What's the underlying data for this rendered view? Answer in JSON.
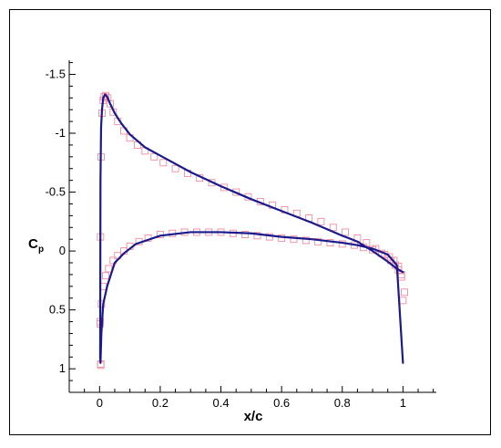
{
  "chart_data": {
    "type": "line",
    "title": "",
    "xlabel": "x/c",
    "ylabel_main": "C",
    "ylabel_sub": "p",
    "xlim": [
      -0.1,
      1.11
    ],
    "ylim": [
      1.2,
      -1.62
    ],
    "y_inverted": true,
    "grid": false,
    "legend": "none",
    "x_ticks": [
      "0",
      "0.2",
      "0.4",
      "0.6",
      "0.8",
      "1"
    ],
    "x_tick_values": [
      0,
      0.2,
      0.4,
      0.6,
      0.8,
      1.0
    ],
    "y_ticks": [
      "-1.5",
      "-1",
      "-0.5",
      "0",
      "0.5",
      "1"
    ],
    "y_tick_values": [
      -1.5,
      -1.0,
      -0.5,
      0,
      0.5,
      1.0
    ],
    "colors": {
      "line": "#1a1a8c",
      "markers": "#f08ca0"
    },
    "series": [
      {
        "kind": "line",
        "x": [
          1.0,
          0.98,
          0.95,
          0.9,
          0.85,
          0.8,
          0.7,
          0.6,
          0.5,
          0.4,
          0.3,
          0.2,
          0.15,
          0.1,
          0.07,
          0.05,
          0.035,
          0.025,
          0.018,
          0.012,
          0.008,
          0.005,
          0.003,
          0.002,
          0.003,
          0.006,
          0.012,
          0.025,
          0.05,
          0.08,
          0.12,
          0.2,
          0.3,
          0.4,
          0.5,
          0.6,
          0.7,
          0.8,
          0.85,
          0.9,
          0.95,
          0.98,
          1.0
        ],
        "y": [
          0.18,
          0.15,
          0.09,
          0.0,
          -0.08,
          -0.13,
          -0.24,
          -0.34,
          -0.44,
          -0.55,
          -0.67,
          -0.81,
          -0.88,
          -0.99,
          -1.09,
          -1.17,
          -1.25,
          -1.31,
          -1.33,
          -1.3,
          -1.2,
          -1.05,
          -0.6,
          0.9,
          0.95,
          0.7,
          0.45,
          0.3,
          0.1,
          0.02,
          -0.06,
          -0.13,
          -0.16,
          -0.16,
          -0.15,
          -0.12,
          -0.1,
          -0.07,
          -0.05,
          -0.02,
          0.03,
          0.12,
          0.95
        ]
      },
      {
        "kind": "markers",
        "x": [
          0.005,
          0.003,
          0.002,
          0.004,
          0.008,
          0.012,
          0.015,
          0.02,
          0.027,
          0.035,
          0.045,
          0.06,
          0.08,
          0.1,
          0.125,
          0.15,
          0.18,
          0.21,
          0.25,
          0.29,
          0.33,
          0.37,
          0.41,
          0.45,
          0.49,
          0.53,
          0.57,
          0.61,
          0.65,
          0.69,
          0.73,
          0.77,
          0.81,
          0.85,
          0.88,
          0.91,
          0.94,
          0.96,
          0.975,
          0.985,
          0.995,
          1.0,
          0.004,
          0.002,
          0.006,
          0.012,
          0.02,
          0.03,
          0.045,
          0.06,
          0.08,
          0.1,
          0.13,
          0.16,
          0.2,
          0.24,
          0.28,
          0.32,
          0.36,
          0.4,
          0.44,
          0.48,
          0.52,
          0.56,
          0.6,
          0.64,
          0.68,
          0.72,
          0.76,
          0.8,
          0.84,
          0.87,
          0.9,
          0.93,
          0.955,
          0.97,
          0.985,
          0.995,
          1.005
        ],
        "y": [
          -0.8,
          -0.12,
          0.6,
          0.96,
          -1.17,
          -1.28,
          -1.31,
          -1.32,
          -1.3,
          -1.25,
          -1.18,
          -1.1,
          -1.02,
          -0.96,
          -0.9,
          -0.85,
          -0.8,
          -0.75,
          -0.7,
          -0.66,
          -0.62,
          -0.58,
          -0.54,
          -0.5,
          -0.46,
          -0.42,
          -0.39,
          -0.35,
          -0.32,
          -0.28,
          -0.25,
          -0.2,
          -0.16,
          -0.11,
          -0.07,
          -0.02,
          0.03,
          0.08,
          0.12,
          0.16,
          0.22,
          0.42,
          0.97,
          0.62,
          0.45,
          0.3,
          0.21,
          0.15,
          0.08,
          0.04,
          0.0,
          -0.04,
          -0.08,
          -0.11,
          -0.14,
          -0.15,
          -0.16,
          -0.16,
          -0.16,
          -0.16,
          -0.15,
          -0.14,
          -0.13,
          -0.12,
          -0.11,
          -0.1,
          -0.09,
          -0.08,
          -0.07,
          -0.06,
          -0.05,
          -0.03,
          -0.01,
          0.02,
          0.05,
          0.08,
          0.13,
          0.2,
          0.35
        ]
      }
    ]
  }
}
